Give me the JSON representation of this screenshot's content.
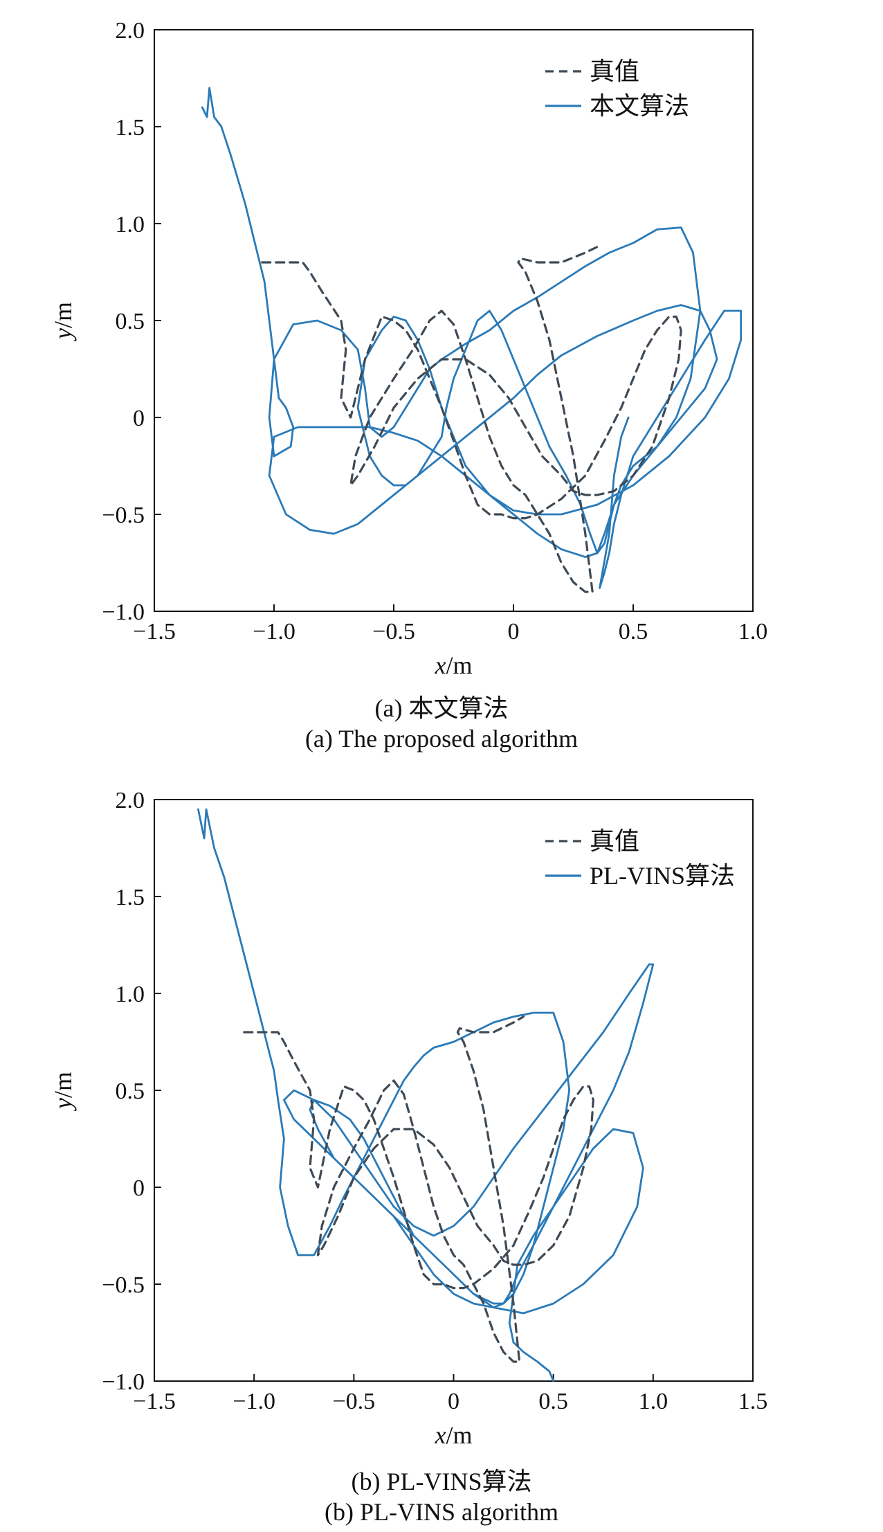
{
  "chart_data": [
    {
      "type": "line",
      "xlabel": "x/m",
      "ylabel": "y/m",
      "xlim": [
        -1.5,
        1.0
      ],
      "ylim": [
        -1.0,
        2.0
      ],
      "xticks": [
        "−1.5",
        "−1.0",
        "−0.5",
        "0",
        "0.5",
        "1.0"
      ],
      "yticks": [
        "−1.0",
        "−0.5",
        "0",
        "0.5",
        "1.0",
        "1.5",
        "2.0"
      ],
      "legend_position": "top-right",
      "caption_cn": "(a) 本文算法",
      "caption_en": "(a) The proposed algorithm",
      "series": [
        {
          "name": "真值",
          "style": "dashed",
          "color": "#3f4a55",
          "x": [
            -1.05,
            -0.95,
            -0.88,
            -0.85,
            -0.8,
            -0.72,
            -0.7,
            -0.72,
            -0.68,
            -0.62,
            -0.55,
            -0.5,
            -0.45,
            -0.4,
            -0.35,
            -0.3,
            -0.25,
            -0.2,
            -0.15,
            -0.1,
            -0.05,
            0.0,
            0.05,
            0.1,
            0.2,
            0.3,
            0.38,
            0.45,
            0.5,
            0.55,
            0.6,
            0.65,
            0.68,
            0.7,
            0.69,
            0.65,
            0.58,
            0.5,
            0.42,
            0.35,
            0.3,
            0.25,
            0.2,
            0.12,
            0.05,
            -0.02,
            -0.1,
            -0.2,
            -0.3,
            -0.4,
            -0.5,
            -0.58,
            -0.65,
            -0.68,
            -0.66,
            -0.6,
            -0.5,
            -0.42,
            -0.35,
            -0.3,
            -0.25,
            -0.2,
            -0.15,
            -0.1,
            -0.05,
            0.0,
            0.05,
            0.1,
            0.15,
            0.2,
            0.25,
            0.3,
            0.33,
            0.3,
            0.25,
            0.2,
            0.15,
            0.1,
            0.05,
            0.02,
            0.03,
            0.1,
            0.2,
            0.3,
            0.35
          ],
          "y": [
            0.8,
            0.8,
            0.8,
            0.75,
            0.65,
            0.5,
            0.35,
            0.1,
            0.0,
            0.3,
            0.52,
            0.5,
            0.45,
            0.35,
            0.2,
            0.05,
            -0.12,
            -0.3,
            -0.45,
            -0.5,
            -0.5,
            -0.52,
            -0.52,
            -0.5,
            -0.42,
            -0.3,
            -0.12,
            0.05,
            0.2,
            0.35,
            0.45,
            0.52,
            0.52,
            0.45,
            0.3,
            0.1,
            -0.15,
            -0.3,
            -0.38,
            -0.4,
            -0.4,
            -0.38,
            -0.3,
            -0.2,
            -0.05,
            0.1,
            0.22,
            0.3,
            0.3,
            0.2,
            0.05,
            -0.15,
            -0.3,
            -0.35,
            -0.2,
            0.0,
            0.2,
            0.35,
            0.5,
            0.55,
            0.48,
            0.3,
            0.1,
            -0.1,
            -0.25,
            -0.35,
            -0.4,
            -0.5,
            -0.6,
            -0.75,
            -0.85,
            -0.9,
            -0.9,
            -0.6,
            -0.2,
            0.1,
            0.4,
            0.6,
            0.75,
            0.8,
            0.82,
            0.8,
            0.8,
            0.85,
            0.88
          ]
        },
        {
          "name": "本文算法",
          "style": "solid",
          "color": "#2a7ab8",
          "x": [
            -1.3,
            -1.28,
            -1.27,
            -1.25,
            -1.22,
            -1.18,
            -1.12,
            -1.08,
            -1.04,
            -1.02,
            -1.0,
            -0.98,
            -0.95,
            -0.92,
            -0.93,
            -1.0,
            -1.02,
            -1.0,
            -0.92,
            -0.82,
            -0.72,
            -0.65,
            -0.62,
            -0.6,
            -0.55,
            -0.5,
            -0.45,
            -0.4,
            -0.35,
            -0.3,
            -0.2,
            -0.1,
            0.0,
            0.1,
            0.2,
            0.3,
            0.4,
            0.5,
            0.6,
            0.7,
            0.75,
            0.78,
            0.74,
            0.68,
            0.6,
            0.5,
            0.45,
            0.42,
            0.4,
            0.38,
            0.35,
            0.3,
            0.2,
            0.1,
            0.0,
            -0.1,
            -0.2,
            -0.3,
            -0.4,
            -0.5,
            -0.6,
            -0.7,
            -0.8,
            -0.9,
            -1.0,
            -1.02,
            -0.95,
            -0.85,
            -0.75,
            -0.65,
            -0.6,
            -0.55,
            -0.5,
            -0.45,
            -0.4,
            -0.3,
            -0.2,
            -0.1,
            0.0,
            0.1,
            0.2,
            0.35,
            0.5,
            0.6,
            0.7,
            0.78,
            0.82,
            0.85,
            0.8,
            0.7,
            0.6,
            0.5,
            0.42,
            0.38,
            0.35,
            0.32,
            0.28,
            0.22,
            0.15,
            0.1,
            0.05,
            0.0,
            -0.05,
            -0.1,
            -0.15,
            -0.2,
            -0.25,
            -0.28,
            -0.3,
            -0.35,
            -0.4,
            -0.45,
            -0.5,
            -0.55,
            -0.6,
            -0.65,
            -0.62,
            -0.55,
            -0.5,
            -0.45,
            -0.4,
            -0.35,
            -0.3,
            -0.25,
            -0.2,
            -0.1,
            0.0,
            0.1,
            0.2,
            0.35,
            0.5,
            0.65,
            0.8,
            0.9,
            0.95,
            0.95,
            0.88,
            0.8,
            0.7,
            0.6,
            0.5,
            0.45,
            0.42,
            0.4,
            0.38,
            0.36,
            0.4,
            0.42,
            0.45,
            0.48
          ],
          "y": [
            1.6,
            1.55,
            1.7,
            1.55,
            1.5,
            1.35,
            1.1,
            0.9,
            0.7,
            0.5,
            0.3,
            0.1,
            0.05,
            -0.05,
            -0.15,
            -0.2,
            0.0,
            0.3,
            0.48,
            0.5,
            0.45,
            0.35,
            0.15,
            -0.05,
            -0.1,
            -0.05,
            0.05,
            0.15,
            0.25,
            0.3,
            0.38,
            0.45,
            0.55,
            0.62,
            0.7,
            0.78,
            0.85,
            0.9,
            0.97,
            0.98,
            0.85,
            0.55,
            0.2,
            0.0,
            -0.15,
            -0.25,
            -0.35,
            -0.45,
            -0.55,
            -0.65,
            -0.7,
            -0.72,
            -0.68,
            -0.6,
            -0.5,
            -0.4,
            -0.3,
            -0.2,
            -0.12,
            -0.08,
            -0.05,
            -0.05,
            -0.05,
            -0.05,
            -0.1,
            -0.3,
            -0.5,
            -0.58,
            -0.6,
            -0.55,
            -0.5,
            -0.45,
            -0.4,
            -0.35,
            -0.3,
            -0.2,
            -0.1,
            0.0,
            0.1,
            0.22,
            0.32,
            0.42,
            0.5,
            0.55,
            0.58,
            0.55,
            0.45,
            0.3,
            0.15,
            0.0,
            -0.15,
            -0.3,
            -0.45,
            -0.6,
            -0.7,
            -0.6,
            -0.45,
            -0.3,
            -0.15,
            0.0,
            0.15,
            0.3,
            0.45,
            0.55,
            0.5,
            0.35,
            0.2,
            0.05,
            -0.1,
            -0.2,
            -0.3,
            -0.35,
            -0.35,
            -0.3,
            -0.2,
            0.05,
            0.3,
            0.45,
            0.52,
            0.5,
            0.4,
            0.25,
            0.05,
            -0.1,
            -0.25,
            -0.4,
            -0.48,
            -0.5,
            -0.5,
            -0.45,
            -0.35,
            -0.2,
            0.0,
            0.2,
            0.4,
            0.55,
            0.55,
            0.4,
            0.2,
            0.0,
            -0.2,
            -0.4,
            -0.55,
            -0.7,
            -0.8,
            -0.88,
            -0.6,
            -0.3,
            -0.1,
            0.0
          ],
          "y_tail": null
        }
      ]
    },
    {
      "type": "line",
      "xlabel": "x/m",
      "ylabel": "y/m",
      "xlim": [
        -1.5,
        1.5
      ],
      "ylim": [
        -1.0,
        2.0
      ],
      "xticks": [
        "−1.5",
        "−1.0",
        "−0.5",
        "0",
        "0.5",
        "1.0",
        "1.5"
      ],
      "yticks": [
        "−1.0",
        "−0.5",
        "0",
        "0.5",
        "1.0",
        "1.5",
        "2.0"
      ],
      "legend_position": "top-right",
      "caption_cn": "(b) PL-VINS算法",
      "caption_en": "(b) PL-VINS algorithm",
      "series": [
        {
          "name": "真值",
          "style": "dashed",
          "color": "#3f4a55",
          "x": [
            -1.05,
            -0.95,
            -0.88,
            -0.85,
            -0.8,
            -0.72,
            -0.7,
            -0.72,
            -0.68,
            -0.62,
            -0.55,
            -0.5,
            -0.45,
            -0.4,
            -0.35,
            -0.3,
            -0.25,
            -0.2,
            -0.15,
            -0.1,
            -0.05,
            0.0,
            0.05,
            0.1,
            0.2,
            0.3,
            0.38,
            0.45,
            0.5,
            0.55,
            0.6,
            0.65,
            0.68,
            0.7,
            0.69,
            0.65,
            0.58,
            0.5,
            0.42,
            0.35,
            0.3,
            0.25,
            0.2,
            0.12,
            0.05,
            -0.02,
            -0.1,
            -0.2,
            -0.3,
            -0.4,
            -0.5,
            -0.58,
            -0.65,
            -0.68,
            -0.66,
            -0.6,
            -0.5,
            -0.42,
            -0.35,
            -0.3,
            -0.25,
            -0.2,
            -0.15,
            -0.1,
            -0.05,
            0.0,
            0.05,
            0.1,
            0.15,
            0.2,
            0.25,
            0.3,
            0.33,
            0.3,
            0.25,
            0.2,
            0.15,
            0.1,
            0.05,
            0.02,
            0.03,
            0.1,
            0.2,
            0.3,
            0.35
          ],
          "y": [
            0.8,
            0.8,
            0.8,
            0.75,
            0.65,
            0.5,
            0.35,
            0.1,
            0.0,
            0.3,
            0.52,
            0.5,
            0.45,
            0.35,
            0.2,
            0.05,
            -0.12,
            -0.3,
            -0.45,
            -0.5,
            -0.5,
            -0.52,
            -0.52,
            -0.5,
            -0.42,
            -0.3,
            -0.12,
            0.05,
            0.2,
            0.35,
            0.45,
            0.52,
            0.52,
            0.45,
            0.3,
            0.1,
            -0.15,
            -0.3,
            -0.38,
            -0.4,
            -0.4,
            -0.38,
            -0.3,
            -0.2,
            -0.05,
            0.1,
            0.22,
            0.3,
            0.3,
            0.2,
            0.05,
            -0.15,
            -0.3,
            -0.35,
            -0.2,
            0.0,
            0.2,
            0.35,
            0.5,
            0.55,
            0.48,
            0.3,
            0.1,
            -0.1,
            -0.25,
            -0.35,
            -0.4,
            -0.5,
            -0.6,
            -0.75,
            -0.85,
            -0.9,
            -0.9,
            -0.6,
            -0.2,
            0.1,
            0.4,
            0.6,
            0.75,
            0.8,
            0.82,
            0.8,
            0.8,
            0.85,
            0.88
          ]
        },
        {
          "name": "PL-VINS算法",
          "style": "solid",
          "color": "#2a7ab8",
          "x": [
            -1.28,
            -1.25,
            -1.24,
            -1.2,
            -1.15,
            -1.1,
            -1.05,
            -1.0,
            -0.95,
            -0.9,
            -0.88,
            -0.85,
            -0.87,
            -0.83,
            -0.78,
            -0.7,
            -0.62,
            -0.55,
            -0.5,
            -0.45,
            -0.4,
            -0.35,
            -0.3,
            -0.25,
            -0.2,
            -0.15,
            -0.1,
            0.0,
            0.1,
            0.2,
            0.3,
            0.4,
            0.5,
            0.55,
            0.58,
            0.55,
            0.5,
            0.45,
            0.4,
            0.35,
            0.3,
            0.25,
            0.2,
            0.1,
            0.0,
            -0.1,
            -0.2,
            -0.3,
            -0.4,
            -0.5,
            -0.6,
            -0.7,
            -0.8,
            -0.85,
            -0.8,
            -0.7,
            -0.6,
            -0.5,
            -0.4,
            -0.3,
            -0.2,
            -0.1,
            0.0,
            0.1,
            0.2,
            0.3,
            0.45,
            0.6,
            0.75,
            0.88,
            0.98,
            1.0,
            0.95,
            0.88,
            0.8,
            0.7,
            0.6,
            0.5,
            0.4,
            0.32,
            0.28,
            0.25,
            0.2,
            0.1,
            0.0,
            -0.1,
            -0.2,
            -0.3,
            -0.4,
            -0.5,
            -0.6,
            -0.68,
            -0.72,
            -0.7,
            -0.62,
            -0.52,
            -0.45,
            -0.4,
            -0.35,
            -0.3,
            -0.25,
            -0.2,
            -0.1,
            0.0,
            0.1,
            0.2,
            0.35,
            0.5,
            0.65,
            0.8,
            0.92,
            0.95,
            0.9,
            0.8,
            0.7,
            0.6,
            0.5,
            0.4,
            0.32,
            0.3,
            0.28,
            0.3,
            0.35,
            0.42,
            0.48,
            0.5
          ],
          "y": [
            1.95,
            1.8,
            1.95,
            1.75,
            1.6,
            1.4,
            1.2,
            1.0,
            0.8,
            0.6,
            0.45,
            0.25,
            0.0,
            -0.2,
            -0.35,
            -0.35,
            -0.2,
            -0.05,
            0.05,
            0.15,
            0.25,
            0.35,
            0.45,
            0.55,
            0.62,
            0.68,
            0.72,
            0.75,
            0.8,
            0.85,
            0.88,
            0.9,
            0.9,
            0.75,
            0.5,
            0.3,
            0.1,
            -0.1,
            -0.3,
            -0.45,
            -0.55,
            -0.6,
            -0.6,
            -0.55,
            -0.45,
            -0.35,
            -0.25,
            -0.15,
            -0.05,
            0.05,
            0.15,
            0.25,
            0.35,
            0.45,
            0.5,
            0.45,
            0.35,
            0.2,
            0.05,
            -0.1,
            -0.2,
            -0.25,
            -0.2,
            -0.1,
            0.05,
            0.2,
            0.4,
            0.6,
            0.8,
            1.0,
            1.15,
            1.15,
            0.95,
            0.7,
            0.5,
            0.3,
            0.1,
            -0.1,
            -0.3,
            -0.45,
            -0.55,
            -0.6,
            -0.62,
            -0.6,
            -0.55,
            -0.45,
            -0.3,
            -0.15,
            -0.05,
            0.05,
            0.15,
            0.3,
            0.4,
            0.45,
            0.42,
            0.35,
            0.25,
            0.15,
            0.05,
            -0.05,
            -0.15,
            -0.25,
            -0.35,
            -0.45,
            -0.55,
            -0.62,
            -0.65,
            -0.6,
            -0.5,
            -0.35,
            -0.1,
            0.1,
            0.28,
            0.3,
            0.2,
            0.05,
            -0.1,
            -0.25,
            -0.4,
            -0.55,
            -0.7,
            -0.8,
            -0.85,
            -0.9,
            -0.95,
            -1.0
          ]
        }
      ]
    }
  ]
}
